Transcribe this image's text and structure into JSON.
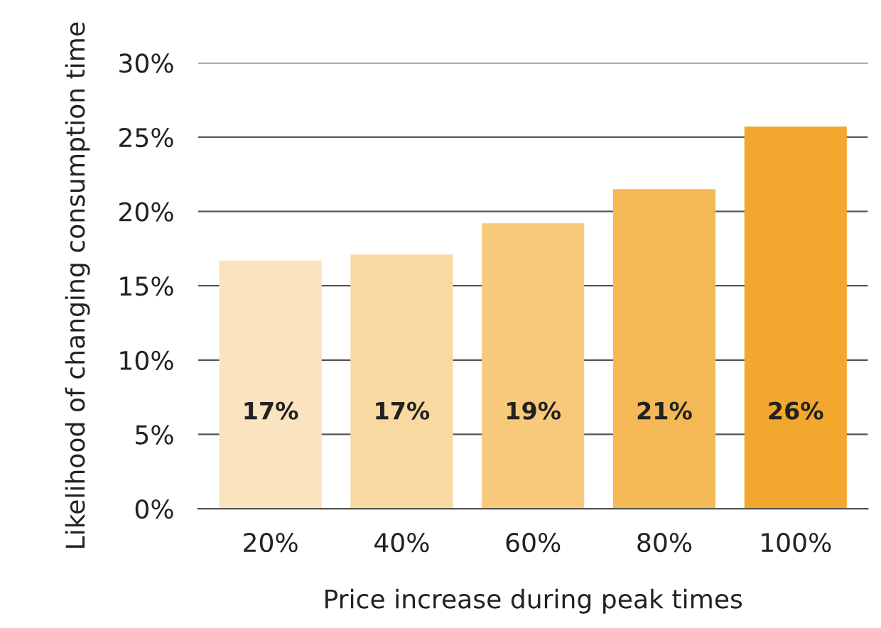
{
  "chart_data": {
    "type": "bar",
    "xlabel": "Price increase during peak times",
    "ylabel": "Likelihood of changing consumption time",
    "categories": [
      "20%",
      "40%",
      "60%",
      "80%",
      "100%"
    ],
    "values": [
      16.7,
      17.1,
      19.2,
      21.5,
      25.7
    ],
    "value_labels": [
      "17%",
      "17%",
      "19%",
      "21%",
      "26%"
    ],
    "colors": [
      "#fae3bf",
      "#f9d9a2",
      "#f7c97a",
      "#f5b857",
      "#f2a72e"
    ],
    "ylim": [
      0,
      30
    ],
    "yticks": [
      {
        "value": 0,
        "label": "0%"
      },
      {
        "value": 5,
        "label": "5%"
      },
      {
        "value": 10,
        "label": "10%"
      },
      {
        "value": 15,
        "label": "15%"
      },
      {
        "value": 20,
        "label": "20%"
      },
      {
        "value": 25,
        "label": "25%"
      },
      {
        "value": 30,
        "label": "30%"
      }
    ],
    "grid": "y"
  }
}
